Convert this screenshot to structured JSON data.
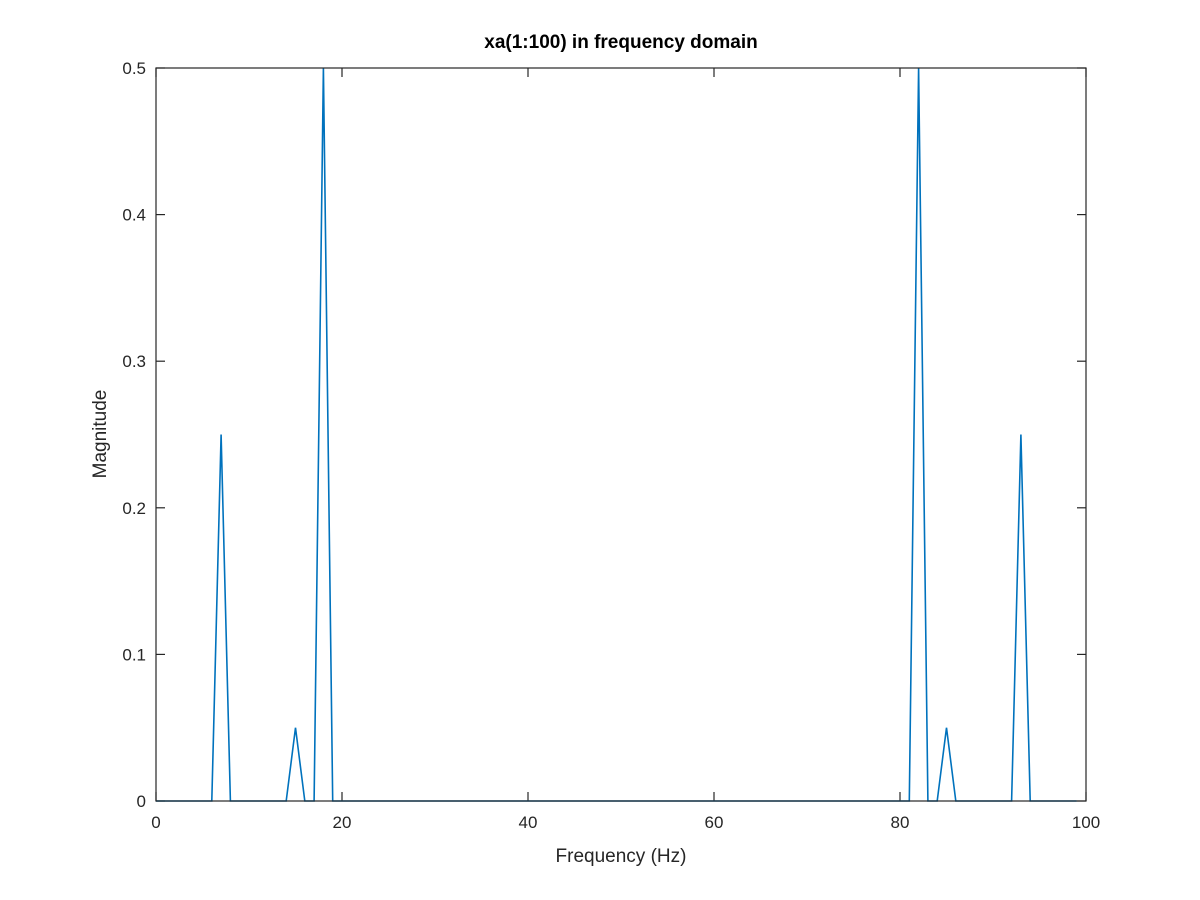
{
  "chart_data": {
    "type": "line",
    "title": "xa(1:100) in frequency domain",
    "xlabel": "Frequency (Hz)",
    "ylabel": "Magnitude",
    "xlim": [
      0,
      100
    ],
    "ylim": [
      0,
      0.5
    ],
    "xticks": [
      0,
      20,
      40,
      60,
      80,
      100
    ],
    "yticks": [
      0,
      0.1,
      0.2,
      0.3,
      0.4,
      0.5
    ],
    "xtick_labels": [
      "0",
      "20",
      "40",
      "60",
      "80",
      "100"
    ],
    "ytick_labels": [
      "0",
      "0.1",
      "0.2",
      "0.3",
      "0.4",
      "0.5"
    ],
    "grid": false,
    "box": true,
    "series": [
      {
        "color": "#0072bd",
        "x": [
          0,
          6,
          7,
          8,
          14,
          15,
          16,
          17,
          18,
          19,
          81,
          82,
          83,
          84,
          85,
          86,
          92,
          93,
          94,
          99
        ],
        "y": [
          0,
          0,
          0.25,
          0,
          0,
          0.05,
          0,
          0,
          0.5,
          0,
          0,
          0.5,
          0,
          0,
          0.05,
          0,
          0,
          0.25,
          0,
          0
        ]
      }
    ]
  }
}
